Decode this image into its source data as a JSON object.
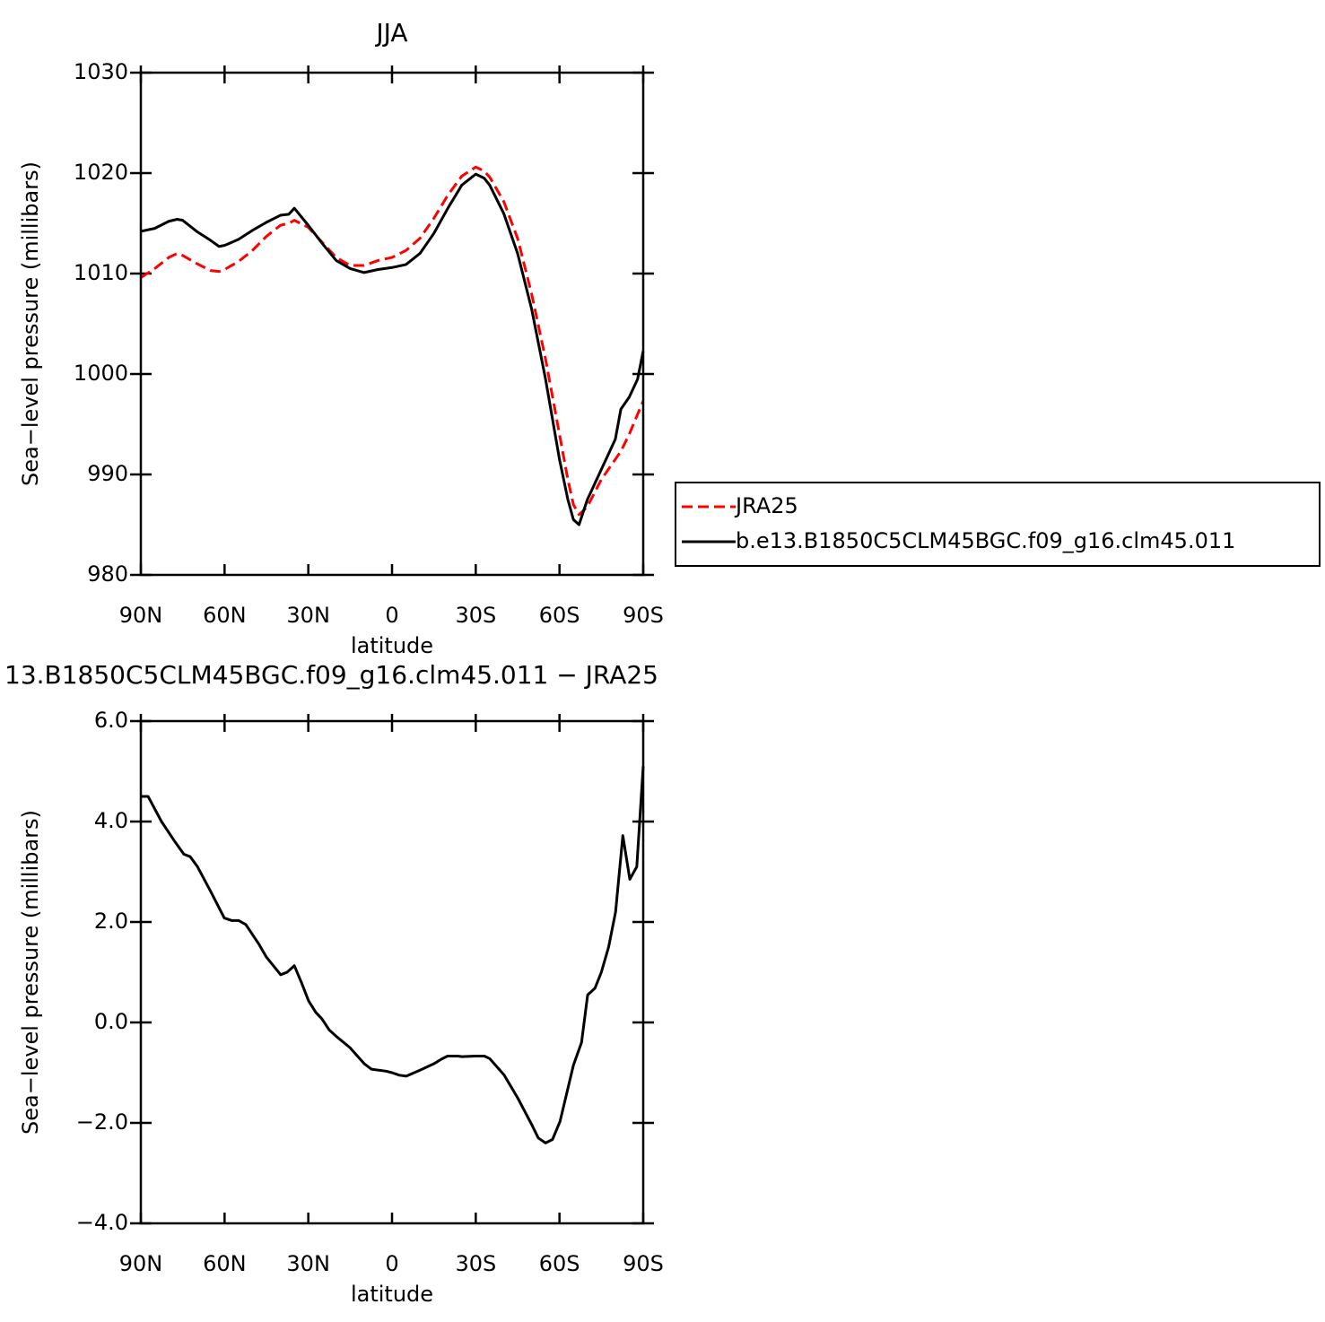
{
  "chart_data": [
    {
      "type": "line",
      "title": "JJA",
      "xlabel": "latitude",
      "ylabel": "Sea−level pressure (millibars)",
      "x": [
        90,
        85,
        80,
        77,
        75,
        70,
        65,
        62,
        60,
        55,
        50,
        45,
        40,
        37,
        35,
        30,
        25,
        20,
        15,
        10,
        5,
        0,
        -5,
        -10,
        -15,
        -20,
        -25,
        -30,
        -33,
        -35,
        -40,
        -45,
        -50,
        -55,
        -60,
        -63,
        -65,
        -67,
        -70,
        -75,
        -80,
        -82,
        -85,
        -88,
        -90
      ],
      "series": [
        {
          "name": "JRA25",
          "color": "#ff0000",
          "linestyle": "dashed",
          "values": [
            1009.6,
            1010.5,
            1011.6,
            1012.0,
            1011.8,
            1011.0,
            1010.3,
            1010.2,
            1010.4,
            1011.2,
            1012.3,
            1013.7,
            1014.8,
            1015.0,
            1015.3,
            1014.6,
            1013.1,
            1011.6,
            1010.8,
            1010.8,
            1011.3,
            1011.6,
            1012.3,
            1013.5,
            1015.5,
            1017.8,
            1019.7,
            1020.6,
            1020.2,
            1019.6,
            1017.2,
            1013.5,
            1008.0,
            1001.5,
            994.0,
            989.5,
            987.0,
            986.0,
            986.8,
            989.5,
            991.5,
            992.3,
            994.0,
            996.0,
            997.3
          ]
        },
        {
          "name": "b.e13.B1850C5CLM45BGC.f09_g16.clm45.011",
          "color": "#000000",
          "linestyle": "solid",
          "values": [
            1014.2,
            1014.5,
            1015.2,
            1015.4,
            1015.3,
            1014.2,
            1013.3,
            1012.7,
            1012.8,
            1013.4,
            1014.3,
            1015.1,
            1015.8,
            1015.9,
            1016.5,
            1014.8,
            1013.0,
            1011.3,
            1010.5,
            1010.1,
            1010.4,
            1010.6,
            1010.9,
            1012.0,
            1014.0,
            1016.5,
            1018.8,
            1019.9,
            1019.5,
            1018.8,
            1016.0,
            1012.0,
            1006.5,
            999.5,
            991.5,
            987.5,
            985.5,
            985.0,
            987.5,
            990.5,
            993.5,
            996.5,
            997.7,
            999.5,
            1002.3
          ]
        }
      ],
      "xlim": [
        90,
        -90
      ],
      "xticks": [
        {
          "value": 90,
          "label": "90N"
        },
        {
          "value": 60,
          "label": "60N"
        },
        {
          "value": 30,
          "label": "30N"
        },
        0,
        {
          "value": -30,
          "label": "30S"
        },
        {
          "value": -60,
          "label": "60S"
        },
        {
          "value": -90,
          "label": "90S"
        }
      ],
      "ylim": [
        980,
        1030
      ],
      "yticks": [
        980,
        990,
        1000,
        1010,
        1020,
        1030
      ],
      "legend": "right"
    },
    {
      "type": "line",
      "title": "13.B1850C5CLM45BGC.f09_g16.clm45.011 − JRA25",
      "xlabel": "latitude",
      "ylabel": "Sea−level pressure (millibars)",
      "x": [
        90,
        87.4,
        82.6,
        77.8,
        74.6,
        72.3,
        69.7,
        64.9,
        60.1,
        57.5,
        55,
        52.4,
        47.6,
        45,
        39.9,
        37.6,
        35,
        32.5,
        29.9,
        27.3,
        25.1,
        22.5,
        19.9,
        15.1,
        10,
        7.4,
        2.2,
        0,
        -2.6,
        -5.1,
        -10,
        -15.1,
        -17.7,
        -19.9,
        -23.5,
        -25.1,
        -29.9,
        -33.1,
        -35,
        -40.2,
        -45,
        -50.2,
        -52.4,
        -55,
        -57.5,
        -60.2,
        -65,
        -67.9,
        -70.1,
        -72.7,
        -75,
        -77.6,
        -80.1,
        -82.7,
        -85.2,
        -87.7,
        -90
      ],
      "series": [
        {
          "color": "#000000",
          "linestyle": "solid",
          "values": [
            4.5,
            4.5,
            4.0,
            3.6,
            3.35,
            3.3,
            3.1,
            2.6,
            2.08,
            2.03,
            2.03,
            1.95,
            1.55,
            1.3,
            0.95,
            1.0,
            1.13,
            0.8,
            0.43,
            0.2,
            0.07,
            -0.15,
            -0.28,
            -0.5,
            -0.82,
            -0.93,
            -0.97,
            -1.0,
            -1.05,
            -1.07,
            -0.95,
            -0.82,
            -0.73,
            -0.67,
            -0.67,
            -0.68,
            -0.67,
            -0.67,
            -0.72,
            -1.05,
            -1.5,
            -2.05,
            -2.3,
            -2.4,
            -2.33,
            -1.97,
            -0.85,
            -0.4,
            0.55,
            0.68,
            1.0,
            1.5,
            2.2,
            3.72,
            2.85,
            3.1,
            5.1
          ]
        }
      ],
      "xlim": [
        90,
        -90
      ],
      "xticks": [
        {
          "value": 90,
          "label": "90N"
        },
        {
          "value": 60,
          "label": "60N"
        },
        {
          "value": 30,
          "label": "30N"
        },
        0,
        {
          "value": -30,
          "label": "30S"
        },
        {
          "value": -60,
          "label": "60S"
        },
        {
          "value": -90,
          "label": "90S"
        }
      ],
      "ylim": [
        -4,
        6
      ],
      "yticks": [
        {
          "value": -4,
          "label": "−4.0"
        },
        {
          "value": -2,
          "label": "−2.0"
        },
        {
          "value": 0,
          "label": "0.0"
        },
        {
          "value": 2,
          "label": "2.0"
        },
        {
          "value": 4,
          "label": "4.0"
        },
        {
          "value": 6,
          "label": "6.0"
        }
      ]
    }
  ]
}
